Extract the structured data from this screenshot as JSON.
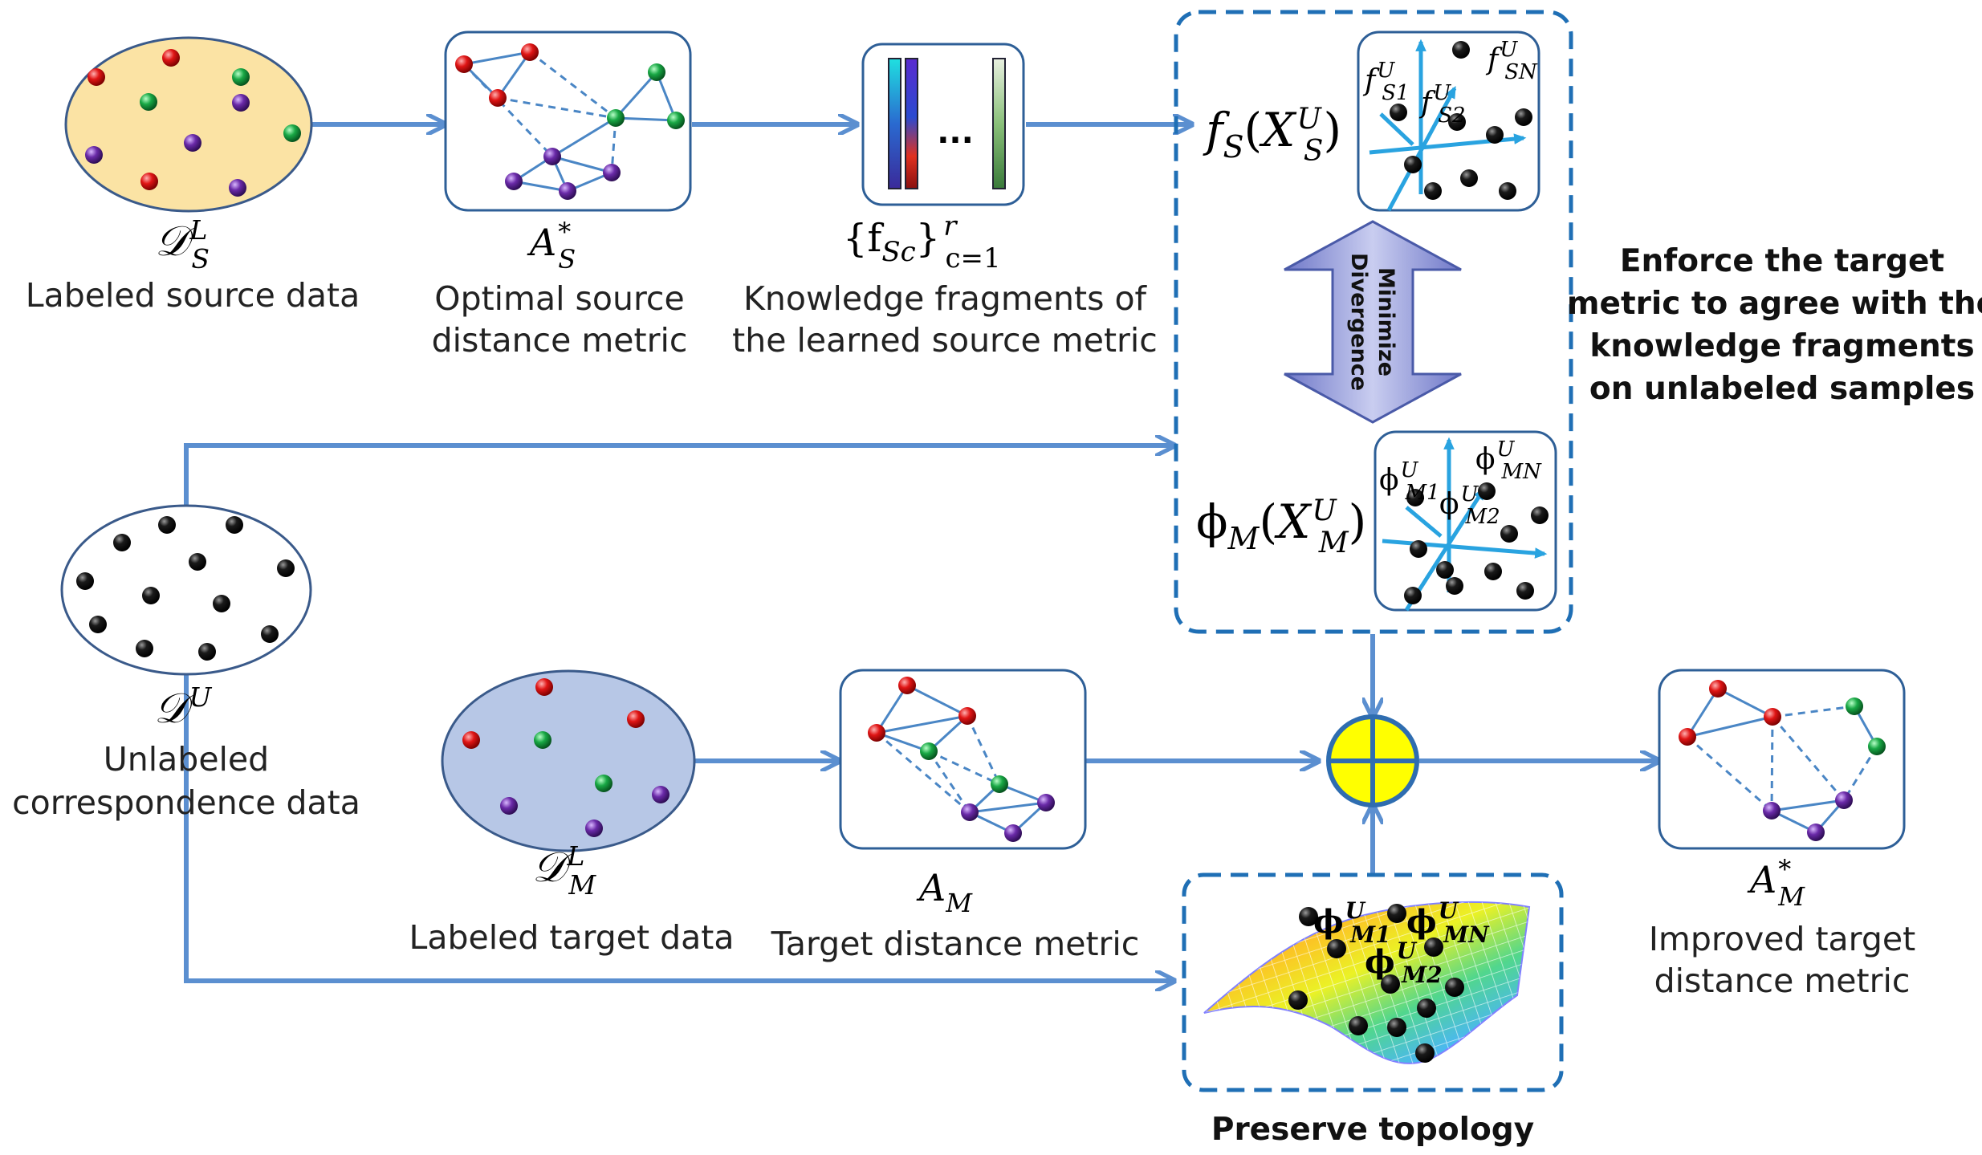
{
  "colors": {
    "flow_arrow": "#5b8fd0",
    "panel_border": "#2e5f97",
    "dashed_box": "#1f6fb5",
    "source_ellipse": "#fbe3a4",
    "target_ellipse": "#b7c7e6",
    "node_red": "#e01515",
    "node_green": "#19a845",
    "node_purple": "#6a2aa8",
    "node_black": "#111111",
    "combiner": "#ffff00",
    "divergence_arrow": "#8e97d6",
    "axis": "#29a3e0"
  },
  "labeled_source": {
    "symbol": "𝒟",
    "sup": "L",
    "sub": "S",
    "caption": "Labeled source data"
  },
  "optimal_source_metric": {
    "symbol": "A",
    "sup": "*",
    "sub": "S",
    "caption_line1": "Optimal source",
    "caption_line2": "distance metric"
  },
  "knowledge_fragments": {
    "formula_main": "{f",
    "formula_sub": "Sc",
    "formula_close": "}",
    "formula_sup": "r",
    "formula_range": "c=1",
    "ellipsis": "...",
    "caption_line1": "Knowledge fragments of",
    "caption_line2": "the learned source metric"
  },
  "source_projection": {
    "func": "f",
    "func_sub": "S",
    "arg": "X",
    "arg_sup": "U",
    "arg_sub": "S",
    "axis_labels": [
      {
        "base": "f",
        "sup": "U",
        "sub": "S1"
      },
      {
        "base": "f",
        "sup": "U",
        "sub": "S2"
      },
      {
        "base": "f",
        "sup": "U",
        "sub": "SN"
      }
    ]
  },
  "divergence_arrow": {
    "line1": "Minimize",
    "line2": "Divergence"
  },
  "target_projection": {
    "func": "ϕ",
    "func_sub": "M",
    "arg": "X",
    "arg_sup": "U",
    "arg_sub": "M",
    "axis_labels": [
      {
        "base": "ϕ",
        "sup": "U",
        "sub": "M1"
      },
      {
        "base": "ϕ",
        "sup": "U",
        "sub": "M2"
      },
      {
        "base": "ϕ",
        "sup": "U",
        "sub": "MN"
      }
    ]
  },
  "enforce_note": {
    "line1": "Enforce the target",
    "line2": "metric to agree with the",
    "line3": "knowledge fragments",
    "line4": "on unlabeled samples"
  },
  "unlabeled": {
    "symbol": "𝒟",
    "sup": "U",
    "caption_line1": "Unlabeled",
    "caption_line2": "correspondence data"
  },
  "labeled_target": {
    "symbol": "𝒟",
    "sup": "L",
    "sub": "M",
    "caption": "Labeled target data"
  },
  "target_metric": {
    "symbol": "A",
    "sub": "M",
    "caption": "Target distance metric"
  },
  "improved_metric": {
    "symbol": "A",
    "sup": "*",
    "sub": "M",
    "caption_line1": "Improved target",
    "caption_line2": "distance metric"
  },
  "topology": {
    "caption": "Preserve topology",
    "manifold_labels": [
      {
        "base": "ϕ",
        "sup": "U",
        "sub": "M1"
      },
      {
        "base": "ϕ",
        "sup": "U",
        "sub": "MN"
      },
      {
        "base": "ϕ",
        "sup": "U",
        "sub": "M2"
      }
    ]
  }
}
